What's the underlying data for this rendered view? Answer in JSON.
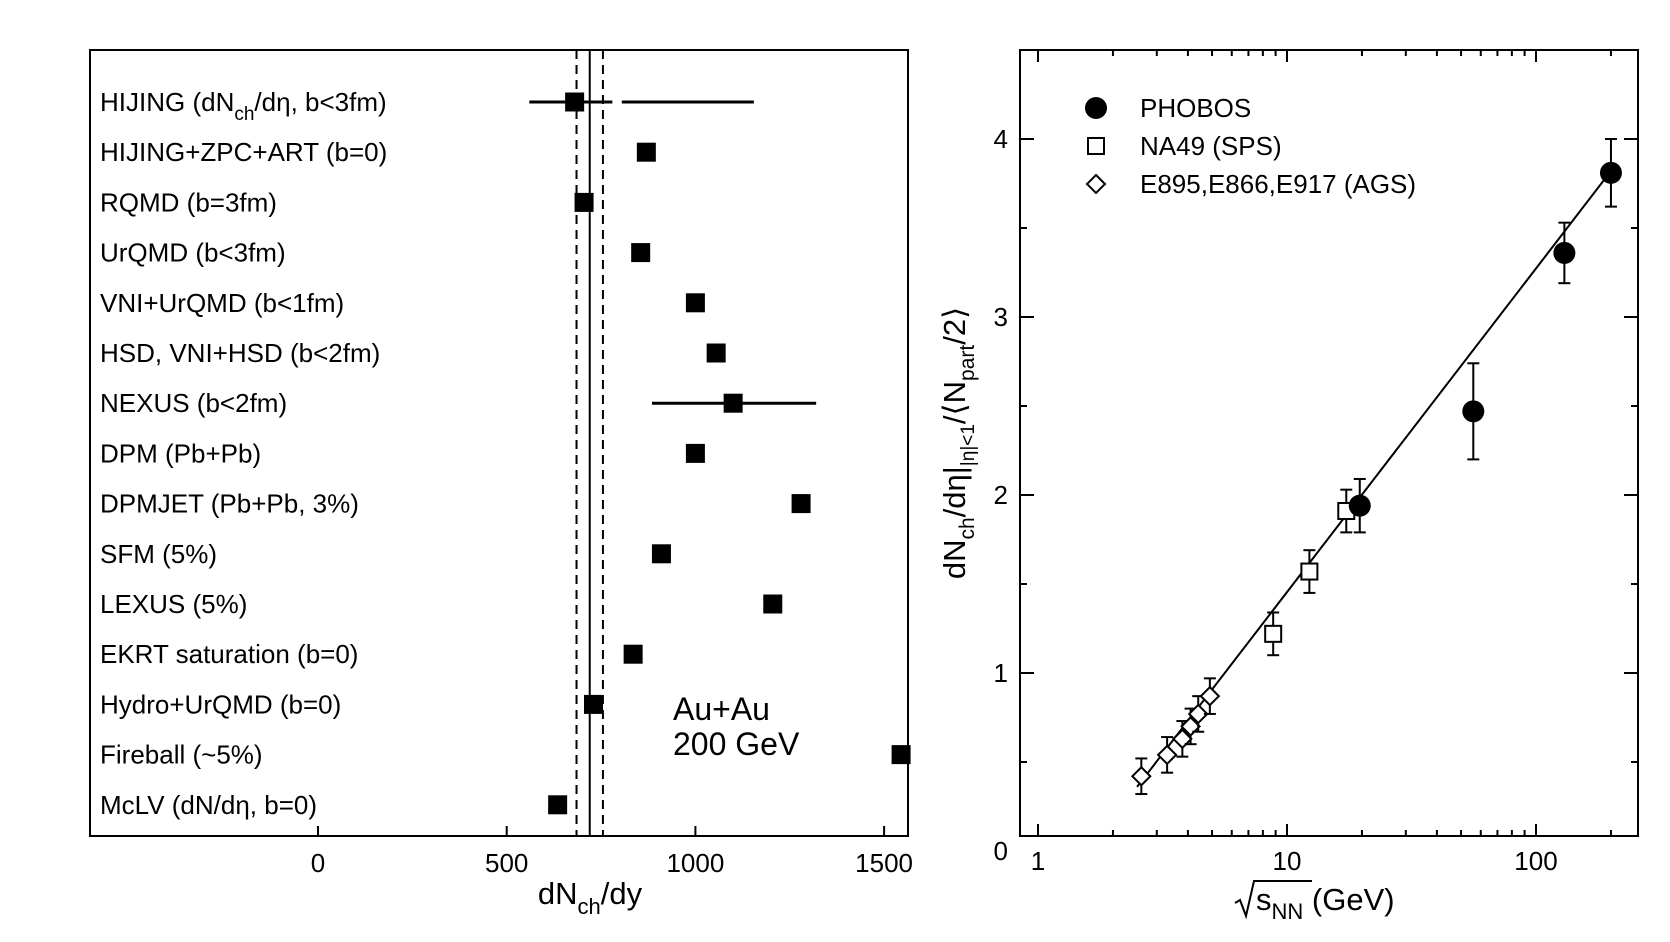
{
  "chart_data": [
    {
      "type": "scatter",
      "title": "",
      "xlabel": "dN_ch/dy",
      "xlabel_parts": {
        "pre": "dN",
        "sub": "ch",
        "post": "/dy"
      },
      "ylabel": "",
      "xlim": [
        -600,
        1600
      ],
      "xticks": [
        0,
        500,
        1000,
        1500
      ],
      "xtick_labels": [
        "0",
        "500",
        "1000",
        "1500"
      ],
      "annotation": [
        "Au+Au",
        "200 GeV"
      ],
      "reference_lines": {
        "solid": 720,
        "dashed": [
          685,
          755
        ]
      },
      "models": [
        {
          "label": "HIJING (dN_ch/dη, b<3fm)",
          "label_parts": {
            "pre": "HIJING (dN",
            "sub": "ch",
            "post": "/dη, b<3fm)"
          },
          "value": 680,
          "ranges": [
            [
              560,
              780
            ],
            [
              805,
              1155
            ]
          ]
        },
        {
          "label": "HIJING+ZPC+ART (b=0)",
          "value": 870
        },
        {
          "label": "RQMD (b=3fm)",
          "value": 705
        },
        {
          "label": "UrQMD (b<3fm)",
          "value": 855
        },
        {
          "label": "VNI+UrQMD (b<1fm)",
          "value": 1000
        },
        {
          "label": "HSD, VNI+HSD (b<2fm)",
          "value": 1055
        },
        {
          "label": "NEXUS (b<2fm)",
          "value": 1100,
          "ranges": [
            [
              885,
              1320
            ]
          ]
        },
        {
          "label": "DPM (Pb+Pb)",
          "value": 1000
        },
        {
          "label": "DPMJET (Pb+Pb, 3%)",
          "value": 1280
        },
        {
          "label": "SFM (5%)",
          "value": 910
        },
        {
          "label": "LEXUS (5%)",
          "value": 1205
        },
        {
          "label": "EKRT saturation (b=0)",
          "value": 835
        },
        {
          "label": "Hydro+UrQMD (b=0)",
          "value": 730
        },
        {
          "label": "Fireball (~5%)",
          "value": 1545
        },
        {
          "label": "McLV (dN/dη, b=0)",
          "value": 635
        }
      ]
    },
    {
      "type": "scatter",
      "title": "",
      "xscale": "log",
      "xlabel": "√s_NN (GeV)",
      "xlabel_parts": {
        "pre": "s",
        "sub": "NN",
        "post": " (GeV)"
      },
      "ylabel": "dN_ch/dη|_{|η|<1}/⟨N_part/2⟩",
      "ylabel_parts": {
        "a": "dN",
        "b": "ch",
        "c": "/dη|",
        "d": "|η|<1",
        "e": "/⟨N",
        "f": "part",
        "g": "/2⟩"
      },
      "xlim": [
        1,
        250
      ],
      "ylim": [
        0,
        4.5
      ],
      "xticks": [
        1,
        10,
        100
      ],
      "xtick_labels": [
        "1",
        "10",
        "100"
      ],
      "yticks": [
        0,
        1,
        2,
        3,
        4
      ],
      "ytick_labels": [
        "0",
        "1",
        "2",
        "3",
        "4"
      ],
      "legend_position": "top-left",
      "fit_line": [
        [
          2.5,
          0.36
        ],
        [
          200,
          3.82
        ]
      ],
      "series": [
        {
          "name": "PHOBOS",
          "marker": "filled-circle",
          "points": [
            {
              "x": 19.6,
              "y": 1.94,
              "err": 0.15
            },
            {
              "x": 56,
              "y": 2.47,
              "err": 0.27
            },
            {
              "x": 130,
              "y": 3.36,
              "err": 0.17
            },
            {
              "x": 200,
              "y": 3.81,
              "err": 0.19
            }
          ]
        },
        {
          "name": "NA49 (SPS)",
          "marker": "open-square",
          "points": [
            {
              "x": 8.8,
              "y": 1.22,
              "err": 0.12
            },
            {
              "x": 12.3,
              "y": 1.57,
              "err": 0.12
            },
            {
              "x": 17.3,
              "y": 1.91,
              "err": 0.12
            }
          ]
        },
        {
          "name": "E895,E866,E917 (AGS)",
          "marker": "open-diamond",
          "points": [
            {
              "x": 2.6,
              "y": 0.42,
              "err": 0.1
            },
            {
              "x": 3.3,
              "y": 0.54,
              "err": 0.1
            },
            {
              "x": 3.8,
              "y": 0.63,
              "err": 0.1
            },
            {
              "x": 4.1,
              "y": 0.7,
              "err": 0.1
            },
            {
              "x": 4.4,
              "y": 0.77,
              "err": 0.1
            },
            {
              "x": 4.9,
              "y": 0.87,
              "err": 0.1
            }
          ]
        }
      ]
    }
  ]
}
